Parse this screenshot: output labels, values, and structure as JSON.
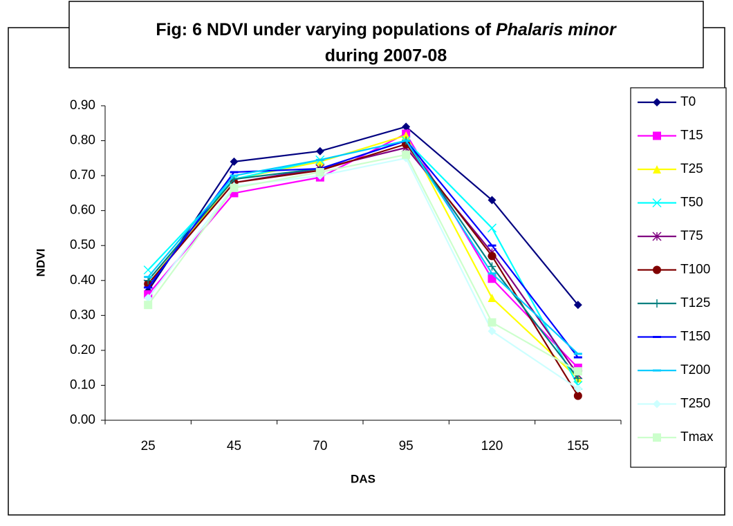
{
  "chart_data": {
    "type": "line",
    "title": [
      "Fig: 6 NDVI under varying populations of",
      "Phalaris minor",
      "during 2007-08"
    ],
    "x_label": "DAS",
    "y_label": "NDVI",
    "categories": [
      "25",
      "45",
      "70",
      "95",
      "120",
      "155"
    ],
    "ylim": [
      0,
      0.9
    ],
    "yticks": [
      {
        "value": 0,
        "label": "0.00"
      },
      {
        "value": 0.1,
        "label": "0.10"
      },
      {
        "value": 0.2,
        "label": "0.20"
      },
      {
        "value": 0.3,
        "label": "0.30"
      },
      {
        "value": 0.4,
        "label": "0.40"
      },
      {
        "value": 0.5,
        "label": "0.50"
      },
      {
        "value": 0.6,
        "label": "0.60"
      },
      {
        "value": 0.7,
        "label": "0.70"
      },
      {
        "value": 0.8,
        "label": "0.80"
      },
      {
        "value": 0.9,
        "label": "0.90"
      }
    ],
    "legend": "right",
    "series": [
      {
        "name": "T0",
        "color": "#000080",
        "marker": "diamond",
        "values": [
          0.37,
          0.74,
          0.77,
          0.84,
          0.63,
          0.33
        ]
      },
      {
        "name": "T15",
        "color": "#ff00ff",
        "marker": "square",
        "values": [
          0.36,
          0.65,
          0.695,
          0.82,
          0.405,
          0.15
        ]
      },
      {
        "name": "T25",
        "color": "#ffff00",
        "marker": "triangle",
        "values": [
          0.39,
          0.69,
          0.74,
          0.815,
          0.35,
          0.12
        ]
      },
      {
        "name": "T50",
        "color": "#00ffff",
        "marker": "x",
        "values": [
          0.43,
          0.69,
          0.745,
          0.8,
          0.55,
          0.1
        ]
      },
      {
        "name": "T75",
        "color": "#800080",
        "marker": "star",
        "values": [
          0.39,
          0.68,
          0.72,
          0.78,
          0.48,
          0.13
        ]
      },
      {
        "name": "T100",
        "color": "#800000",
        "marker": "circle",
        "values": [
          0.39,
          0.68,
          0.715,
          0.79,
          0.47,
          0.07
        ]
      },
      {
        "name": "T125",
        "color": "#008080",
        "marker": "plus",
        "values": [
          0.4,
          0.69,
          0.72,
          0.8,
          0.44,
          0.12
        ]
      },
      {
        "name": "T150",
        "color": "#0000ff",
        "marker": "dash",
        "values": [
          0.38,
          0.71,
          0.72,
          0.8,
          0.5,
          0.18
        ]
      },
      {
        "name": "T200",
        "color": "#00ccff",
        "marker": "dash",
        "values": [
          0.41,
          0.7,
          0.745,
          0.8,
          0.42,
          0.19
        ]
      },
      {
        "name": "T250",
        "color": "#ccffff",
        "marker": "diamond",
        "values": [
          0.35,
          0.67,
          0.7,
          0.75,
          0.255,
          0.09
        ]
      },
      {
        "name": "Tmax",
        "color": "#ccffcc",
        "marker": "square",
        "values": [
          0.33,
          0.665,
          0.71,
          0.76,
          0.28,
          0.14
        ]
      }
    ]
  }
}
